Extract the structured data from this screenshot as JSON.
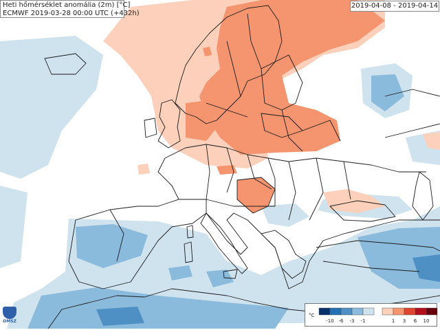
{
  "header": {
    "title": "Heti hőmérséklet anomália (2m) [°C]",
    "subtitle": "ECMWF 2019-03-28 00:00 UTC (+432h)",
    "date_range": "2019-04-08 - 2019-04-14"
  },
  "legend": {
    "unit": "°C",
    "negative_labels": [
      "-10",
      "-6",
      "-3",
      "-1"
    ],
    "positive_labels": [
      "1",
      "3",
      "6",
      "10"
    ],
    "negative_colors": [
      "#08306b",
      "#2171b5",
      "#4f90c4",
      "#8bbbdc",
      "#cfe3ef"
    ],
    "positive_colors": [
      "#fcd0ba",
      "#f4956f",
      "#e0452f",
      "#b30e1c",
      "#67000d"
    ]
  },
  "logo": {
    "text": "OMSZ",
    "icon": "omsz-logo-icon"
  },
  "colors": {
    "sea": "#ffffff",
    "cold_light": "#cfe3ef",
    "cold_mid": "#8bbbdc",
    "cold_strong": "#4f90c4",
    "warm_light": "#fcd0ba",
    "warm_mid": "#f4956f",
    "borders": "#1a1a1a"
  }
}
